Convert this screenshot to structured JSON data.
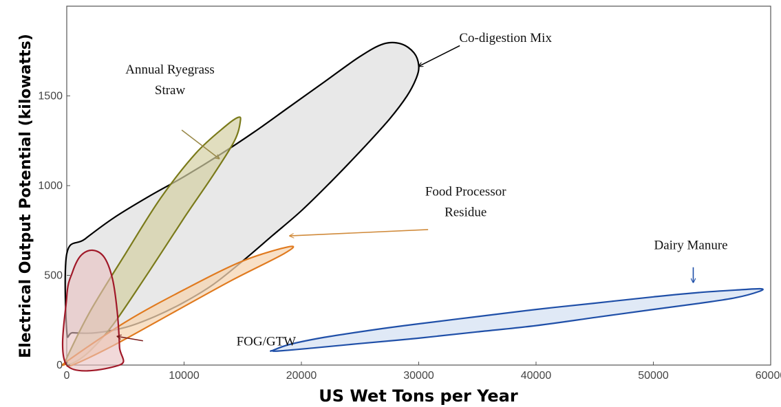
{
  "chart_data": {
    "type": "scatter",
    "title": "",
    "xlabel": "US Wet Tons per Year",
    "ylabel": "Electrical Output Potential (kilowatts)",
    "xlim": [
      0,
      60000
    ],
    "ylim": [
      0,
      2000
    ],
    "grid": false,
    "legend": "none",
    "x_ticks": [
      0,
      10000,
      20000,
      30000,
      40000,
      50000,
      60000
    ],
    "x_tick_labels": [
      "0",
      "10000",
      "20000",
      "30000",
      "40000",
      "50000",
      "60000"
    ],
    "y_ticks": [
      0,
      500,
      1000,
      1500
    ],
    "y_tick_labels": [
      "0",
      "500",
      "1000",
      "1500"
    ],
    "series": [
      {
        "key": "codigestion",
        "name": "Co-digestion Mix",
        "stroke": "#000000",
        "fill": "#e5e5e5",
        "fill_opacity": 0.9,
        "points": [
          [
            0,
            620
          ],
          [
            1500,
            700
          ],
          [
            4000,
            820
          ],
          [
            7000,
            940
          ],
          [
            10000,
            1050
          ],
          [
            13000,
            1170
          ],
          [
            16000,
            1300
          ],
          [
            19000,
            1440
          ],
          [
            22000,
            1580
          ],
          [
            25000,
            1720
          ],
          [
            27000,
            1790
          ],
          [
            28500,
            1790
          ],
          [
            29600,
            1740
          ],
          [
            30000,
            1670
          ],
          [
            29800,
            1600
          ],
          [
            29000,
            1500
          ],
          [
            27500,
            1370
          ],
          [
            25000,
            1190
          ],
          [
            22500,
            1020
          ],
          [
            20000,
            860
          ],
          [
            17500,
            720
          ],
          [
            15000,
            580
          ],
          [
            12500,
            450
          ],
          [
            10000,
            350
          ],
          [
            7500,
            270
          ],
          [
            5000,
            210
          ],
          [
            2500,
            180
          ],
          [
            500,
            180
          ],
          [
            0,
            190
          ]
        ]
      },
      {
        "key": "ryegrass",
        "name": "Annual Ryegrass Straw",
        "stroke": "#7a7a1a",
        "fill": "#d4d0a4",
        "fill_opacity": 0.7,
        "points": [
          [
            0,
            40
          ],
          [
            2000,
            300
          ],
          [
            5000,
            620
          ],
          [
            8000,
            930
          ],
          [
            11000,
            1180
          ],
          [
            13500,
            1330
          ],
          [
            14600,
            1380
          ],
          [
            14800,
            1360
          ],
          [
            14300,
            1250
          ],
          [
            12500,
            1060
          ],
          [
            10000,
            820
          ],
          [
            7000,
            520
          ],
          [
            4000,
            230
          ],
          [
            2000,
            80
          ],
          [
            500,
            10
          ],
          [
            0,
            20
          ]
        ]
      },
      {
        "key": "food",
        "name": "Food Processor Residue",
        "stroke": "#e07a1f",
        "fill": "#f5d6b3",
        "fill_opacity": 0.75,
        "points": [
          [
            0,
            20
          ],
          [
            5000,
            240
          ],
          [
            10000,
            420
          ],
          [
            15000,
            580
          ],
          [
            19000,
            660
          ],
          [
            18500,
            620
          ],
          [
            14000,
            470
          ],
          [
            9000,
            290
          ],
          [
            4000,
            110
          ],
          [
            500,
            0
          ],
          [
            0,
            5
          ]
        ]
      },
      {
        "key": "fog",
        "name": "FOG/GTW",
        "stroke": "#a01828",
        "fill": "#e8bfc0",
        "fill_opacity": 0.6,
        "points": [
          [
            0,
            380
          ],
          [
            500,
            520
          ],
          [
            1200,
            610
          ],
          [
            2200,
            640
          ],
          [
            3200,
            600
          ],
          [
            3900,
            480
          ],
          [
            4300,
            300
          ],
          [
            4500,
            100
          ],
          [
            4500,
            0
          ],
          [
            0,
            0
          ]
        ]
      },
      {
        "key": "dairy",
        "name": "Dairy Manure",
        "stroke": "#1f4fa8",
        "fill": "#dde7f5",
        "fill_opacity": 0.9,
        "points": [
          [
            17500,
            80
          ],
          [
            19000,
            115
          ],
          [
            22000,
            155
          ],
          [
            26000,
            195
          ],
          [
            30000,
            230
          ],
          [
            35000,
            270
          ],
          [
            40000,
            310
          ],
          [
            45000,
            345
          ],
          [
            50000,
            380
          ],
          [
            54000,
            405
          ],
          [
            57500,
            420
          ],
          [
            59200,
            425
          ],
          [
            59000,
            410
          ],
          [
            57000,
            375
          ],
          [
            54000,
            345
          ],
          [
            50000,
            310
          ],
          [
            45000,
            265
          ],
          [
            40000,
            220
          ],
          [
            35000,
            185
          ],
          [
            30000,
            150
          ],
          [
            25000,
            120
          ],
          [
            21000,
            95
          ],
          [
            18000,
            78
          ],
          [
            17500,
            80
          ]
        ]
      }
    ],
    "annotations": [
      {
        "key": "codigestion",
        "lines": [
          "Co-digestion Mix"
        ],
        "text_at": [
          37400,
          1800
        ],
        "arrow_from": [
          33500,
          1780
        ],
        "arrow_to": [
          30000,
          1665
        ],
        "color": "#000000"
      },
      {
        "key": "ryegrass",
        "lines": [
          "Annual Ryegrass",
          "Straw"
        ],
        "text_at": [
          8800,
          1625
        ],
        "arrow_from": [
          9800,
          1310
        ],
        "arrow_to": [
          13000,
          1150
        ],
        "color": "#9a8a4a"
      },
      {
        "key": "food",
        "lines": [
          "Food Processor",
          "Residue"
        ],
        "text_at": [
          34000,
          945
        ],
        "arrow_from": [
          30800,
          755
        ],
        "arrow_to": [
          19000,
          720
        ],
        "color": "#d08a3a"
      },
      {
        "key": "dairy",
        "lines": [
          "Dairy Manure"
        ],
        "text_at": [
          53200,
          645
        ],
        "arrow_from": [
          53400,
          545
        ],
        "arrow_to": [
          53400,
          460
        ],
        "color": "#1f4fa8"
      },
      {
        "key": "fog",
        "lines": [
          "FOG/GTW"
        ],
        "text_at": [
          17000,
          110
        ],
        "arrow_from": [
          6500,
          135
        ],
        "arrow_to": [
          4300,
          160
        ],
        "color": "#7a1a1a"
      }
    ]
  }
}
